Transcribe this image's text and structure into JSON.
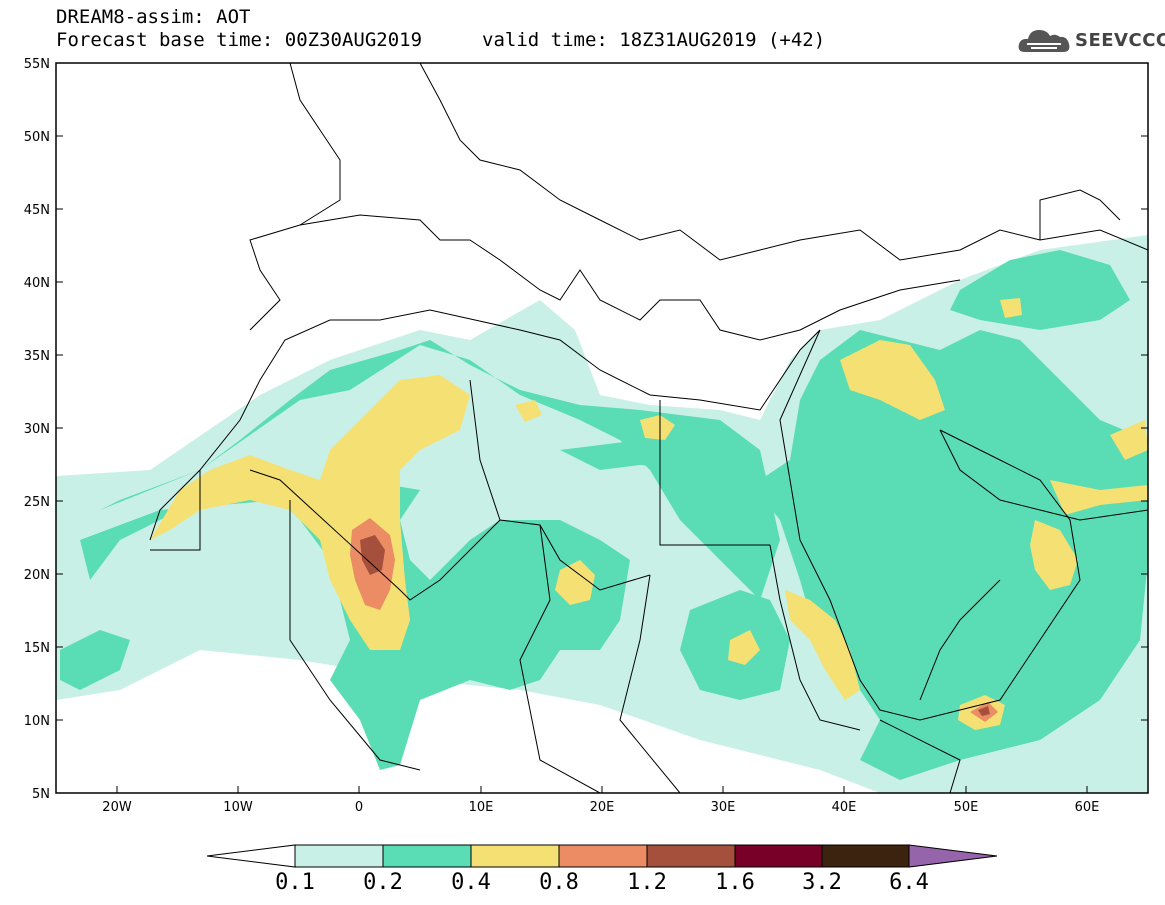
{
  "header": {
    "line1": "DREAM8-assim: AOT",
    "line2": "Forecast base time: 00Z30AUG2019",
    "valid": "valid time: 18Z31AUG2019 (+42)",
    "logo_text": "SEEVCCC"
  },
  "axes": {
    "lat_labels": [
      "55N",
      "50N",
      "45N",
      "40N",
      "35N",
      "30N",
      "25N",
      "20N",
      "15N",
      "10N",
      "5N"
    ],
    "lon_labels": [
      "20W",
      "10W",
      "0",
      "10E",
      "20E",
      "30E",
      "40E",
      "50E",
      "60E"
    ]
  },
  "colorbar": {
    "labels": [
      "0.1",
      "0.2",
      "0.4",
      "0.8",
      "1.2",
      "1.6",
      "3.2",
      "6.4"
    ],
    "colors": [
      "#c8f0e6",
      "#5adcb4",
      "#f5e173",
      "#eb8c64",
      "#a5503c",
      "#780028",
      "#3c230f",
      "#9664aa"
    ]
  },
  "palette": {
    "c1": "#c8f0e6",
    "c2": "#5adcb4",
    "c3": "#f5e173",
    "c4": "#eb8c64",
    "c5": "#a5503c",
    "c6": "#780028"
  }
}
